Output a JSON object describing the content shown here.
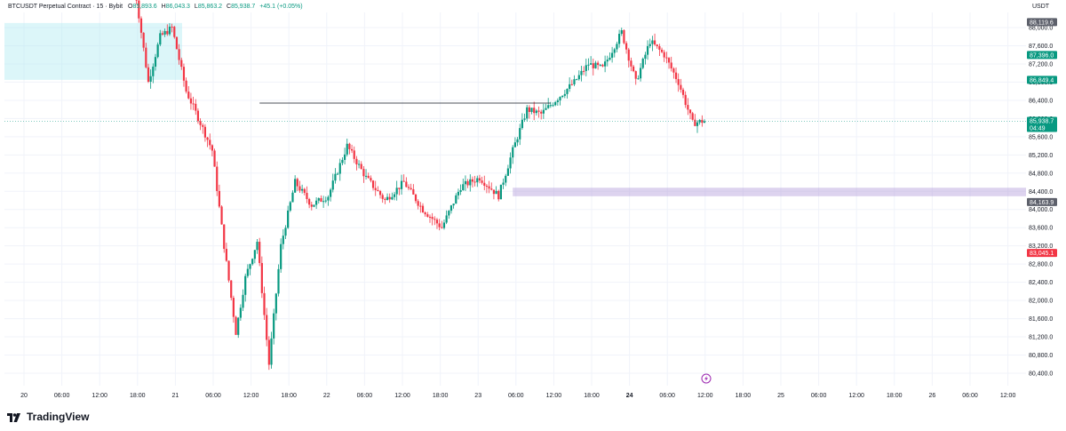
{
  "header": {
    "symbol_line": "BTCUSDT Perpetual Contract · 15 · Bybit",
    "o_label": "O",
    "o_value": "85,893.6",
    "h_label": "H",
    "h_value": "86,043.3",
    "l_label": "L",
    "l_value": "85,863.2",
    "c_label": "C",
    "c_value": "85,938.7",
    "change": "+45.1 (+0.05%)"
  },
  "price_axis": {
    "unit": "USDT",
    "badges": [
      {
        "label": "88,119.6",
        "price": 88119.6,
        "color": "#5d606b"
      },
      {
        "label": "87,396.0",
        "price": 87396.0,
        "color": "#089981"
      },
      {
        "label": "86,849.4",
        "price": 86849.4,
        "color": "#089981"
      },
      {
        "label": "85,938.7",
        "price": 85938.7,
        "color": "#089981",
        "sub": "04:49"
      },
      {
        "label": "84,163.9",
        "price": 84163.9,
        "color": "#5d606b"
      },
      {
        "label": "83,045.1",
        "price": 83045.1,
        "color": "#f23645"
      }
    ]
  },
  "brand": {
    "name": "TradingView"
  },
  "chart_data": {
    "type": "candlestick",
    "up_color": "#089981",
    "down_color": "#f23645",
    "y_ticks": [
      80400,
      80800,
      81200,
      81600,
      82000,
      82400,
      82800,
      83200,
      83600,
      84000,
      84400,
      84800,
      85200,
      85600,
      86000,
      86400,
      86800,
      87200,
      87600,
      88000
    ],
    "y_tick_labels": [
      "80,400.0",
      "80,800.0",
      "81,200.0",
      "81,600.0",
      "82,000.0",
      "82,400.0",
      "82,800.0",
      "83,200.0",
      "83,600.0",
      "84,000.0",
      "84,400.0",
      "84,800.0",
      "85,200.0",
      "85,600.0",
      "86,000.0",
      "86,400.0",
      "86,800.0",
      "87,200.0",
      "87,600.0",
      "88,000.0"
    ],
    "x_ticks": [
      "20",
      "06:00",
      "12:00",
      "18:00",
      "21",
      "06:00",
      "12:00",
      "18:00",
      "22",
      "06:00",
      "12:00",
      "18:00",
      "23",
      "06:00",
      "12:00",
      "18:00",
      "24",
      "06:00",
      "12:00",
      "18:00",
      "25",
      "06:00",
      "12:00",
      "18:00",
      "26",
      "06:00",
      "12:00"
    ],
    "x_tick_bold": [
      false,
      false,
      false,
      false,
      false,
      false,
      false,
      false,
      false,
      false,
      false,
      false,
      false,
      false,
      false,
      false,
      true,
      false,
      false,
      false,
      false,
      false,
      false,
      false,
      false,
      false,
      false
    ],
    "path_points": [
      [
        0,
        89000
      ],
      [
        6,
        86800
      ],
      [
        11,
        87800
      ],
      [
        16,
        88000
      ],
      [
        22,
        86600
      ],
      [
        28,
        85900
      ],
      [
        33,
        85300
      ],
      [
        38,
        83200
      ],
      [
        43,
        81300
      ],
      [
        47,
        82500
      ],
      [
        52,
        83300
      ],
      [
        57,
        80600
      ],
      [
        62,
        83200
      ],
      [
        68,
        84600
      ],
      [
        75,
        84100
      ],
      [
        82,
        84300
      ],
      [
        90,
        85400
      ],
      [
        98,
        84700
      ],
      [
        106,
        84200
      ],
      [
        114,
        84600
      ],
      [
        122,
        84000
      ],
      [
        130,
        83600
      ],
      [
        138,
        84500
      ],
      [
        146,
        84700
      ],
      [
        154,
        84300
      ],
      [
        160,
        85300
      ],
      [
        166,
        86200
      ],
      [
        172,
        86100
      ],
      [
        178,
        86400
      ],
      [
        186,
        86800
      ],
      [
        192,
        87200
      ],
      [
        198,
        87100
      ],
      [
        206,
        87900
      ],
      [
        212,
        86800
      ],
      [
        218,
        87700
      ],
      [
        224,
        87400
      ],
      [
        230,
        86800
      ],
      [
        236,
        85900
      ],
      [
        241,
        85950
      ]
    ],
    "num_candles": 242,
    "time_per_candle": "15m",
    "horizontal_line": {
      "price": 86340,
      "from_candle": 53,
      "to_candle": 176
    },
    "support_zone": {
      "from": 84350,
      "to": 84420,
      "from_candle": 160
    },
    "top_left_zone": {
      "from": 86850,
      "to": 88100
    },
    "current_price": 85938.7
  }
}
